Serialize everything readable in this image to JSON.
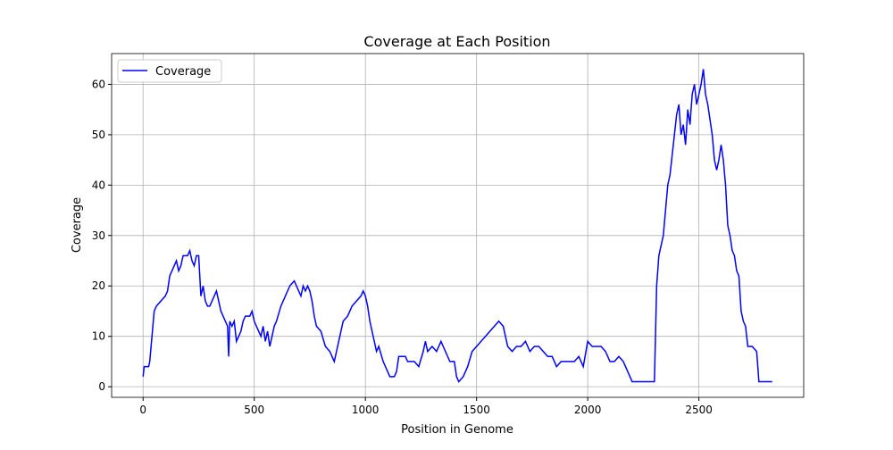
{
  "chart_data": {
    "type": "line",
    "title": "Coverage at Each Position",
    "xlabel": "Position in Genome",
    "ylabel": "Coverage",
    "x": [
      0,
      5,
      15,
      25,
      30,
      40,
      50,
      60,
      80,
      100,
      110,
      120,
      130,
      140,
      150,
      160,
      170,
      180,
      200,
      210,
      220,
      230,
      240,
      250,
      260,
      270,
      280,
      290,
      300,
      310,
      320,
      330,
      340,
      350,
      360,
      370,
      380,
      385,
      390,
      400,
      410,
      420,
      430,
      440,
      450,
      460,
      480,
      490,
      500,
      510,
      520,
      530,
      540,
      550,
      560,
      570,
      580,
      590,
      600,
      620,
      640,
      660,
      680,
      700,
      710,
      720,
      730,
      740,
      750,
      760,
      770,
      780,
      800,
      820,
      840,
      850,
      860,
      870,
      880,
      900,
      920,
      940,
      960,
      980,
      990,
      1000,
      1010,
      1020,
      1030,
      1040,
      1050,
      1060,
      1080,
      1100,
      1110,
      1130,
      1140,
      1150,
      1180,
      1190,
      1220,
      1240,
      1260,
      1270,
      1280,
      1300,
      1320,
      1340,
      1360,
      1380,
      1400,
      1410,
      1420,
      1440,
      1460,
      1480,
      1500,
      1520,
      1540,
      1560,
      1580,
      1600,
      1620,
      1640,
      1660,
      1680,
      1700,
      1720,
      1740,
      1760,
      1780,
      1800,
      1820,
      1840,
      1860,
      1880,
      1900,
      1920,
      1940,
      1960,
      1980,
      2000,
      2020,
      2040,
      2060,
      2080,
      2100,
      2120,
      2140,
      2160,
      2180,
      2190,
      2200,
      2300,
      2310,
      2320,
      2340,
      2350,
      2360,
      2370,
      2380,
      2390,
      2400,
      2410,
      2420,
      2430,
      2440,
      2450,
      2460,
      2470,
      2480,
      2490,
      2500,
      2510,
      2520,
      2530,
      2540,
      2560,
      2570,
      2580,
      2590,
      2600,
      2610,
      2620,
      2630,
      2640,
      2650,
      2660,
      2670,
      2680,
      2690,
      2700,
      2710,
      2720,
      2740,
      2760,
      2770,
      2830
    ],
    "series": [
      {
        "name": "Coverage",
        "color": "#0000ff",
        "values": [
          2,
          4,
          4,
          4,
          5,
          10,
          15,
          16,
          17,
          18,
          19,
          22,
          23,
          24,
          25,
          23,
          24,
          26,
          26,
          27,
          25,
          24,
          26,
          26,
          18,
          20,
          17,
          16,
          16,
          17,
          18,
          19,
          17,
          15,
          14,
          13,
          12,
          6,
          13,
          12,
          13,
          9,
          10,
          11,
          13,
          14,
          14,
          15,
          13,
          12,
          11,
          10,
          12,
          9,
          11,
          8,
          10,
          12,
          13,
          16,
          18,
          20,
          21,
          19,
          18,
          20,
          19,
          20,
          19,
          17,
          14,
          12,
          11,
          8,
          7,
          6,
          5,
          7,
          9,
          13,
          14,
          16,
          17,
          18,
          19,
          18,
          16,
          13,
          11,
          9,
          7,
          8,
          5,
          3,
          2,
          2,
          3,
          6,
          6,
          5,
          5,
          4,
          7,
          9,
          7,
          8,
          7,
          9,
          7,
          5,
          5,
          2,
          1,
          2,
          4,
          7,
          8,
          9,
          10,
          11,
          12,
          13,
          12,
          8,
          7,
          8,
          8,
          9,
          7,
          8,
          8,
          7,
          6,
          6,
          4,
          5,
          5,
          5,
          5,
          6,
          4,
          9,
          8,
          8,
          8,
          7,
          5,
          5,
          6,
          5,
          3,
          2,
          1,
          1,
          20,
          26,
          30,
          35,
          40,
          42,
          46,
          50,
          54,
          56,
          50,
          52,
          48,
          55,
          52,
          58,
          60,
          56,
          58,
          60,
          63,
          58,
          56,
          50,
          45,
          43,
          45,
          48,
          45,
          40,
          32,
          30,
          27,
          26,
          23,
          22,
          15,
          13,
          12,
          8,
          8,
          7,
          1,
          1
        ]
      }
    ],
    "xlim": [
      -141.5,
      2971.5
    ],
    "ylim": [
      -2.1,
      66.1
    ],
    "xticks": [
      0,
      500,
      1000,
      1500,
      2000,
      2500
    ],
    "yticks": [
      0,
      10,
      20,
      30,
      40,
      50,
      60
    ],
    "grid": true,
    "legend": "upper left"
  }
}
